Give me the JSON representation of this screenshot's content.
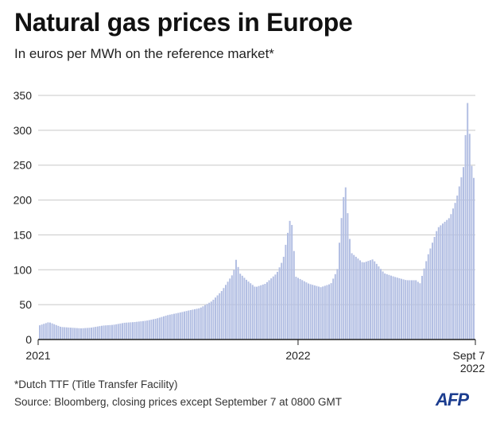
{
  "header": {
    "title": "Natural gas prices in Europe",
    "subtitle": "In euros per MWh on the reference market*"
  },
  "footer": {
    "footnote": "*Dutch TTF (Title Transfer Facility)",
    "source": "Source: Bloomberg, closing prices except September 7 at 0800 GMT",
    "logo": "AFP"
  },
  "colors": {
    "bar": "#b3bfe3",
    "bar_stroke": "#9fadd9",
    "grid": "#c8c8c8",
    "axis": "#222222",
    "text": "#222222"
  },
  "chart_data": {
    "type": "bar",
    "title": "Natural gas prices in Europe",
    "subtitle": "In euros per MWh on the reference market*",
    "ylim": [
      0,
      350
    ],
    "yticks": [
      0,
      50,
      100,
      150,
      200,
      250,
      300,
      350
    ],
    "xlim": [
      "2021-01-01",
      "2022-09-07"
    ],
    "xticks": [
      {
        "date": "2021-01-01",
        "label": "2021"
      },
      {
        "date": "2022-01-01",
        "label": "2022"
      },
      {
        "date": "2022-09-07",
        "label": "Sept 7",
        "label2": "2022"
      }
    ],
    "grid": "horizontal",
    "x": [
      "2021-01-01",
      "2021-01-15",
      "2021-02-01",
      "2021-02-15",
      "2021-03-01",
      "2021-03-15",
      "2021-04-01",
      "2021-04-15",
      "2021-05-01",
      "2021-05-15",
      "2021-06-01",
      "2021-06-15",
      "2021-07-01",
      "2021-07-15",
      "2021-08-01",
      "2021-08-15",
      "2021-09-01",
      "2021-09-15",
      "2021-10-01",
      "2021-10-05",
      "2021-10-10",
      "2021-10-20",
      "2021-11-01",
      "2021-11-15",
      "2021-12-01",
      "2021-12-10",
      "2021-12-21",
      "2021-12-28",
      "2022-01-15",
      "2022-02-01",
      "2022-02-15",
      "2022-02-24",
      "2022-03-01",
      "2022-03-07",
      "2022-03-15",
      "2022-04-01",
      "2022-04-15",
      "2022-05-01",
      "2022-05-15",
      "2022-06-01",
      "2022-06-15",
      "2022-06-20",
      "2022-07-01",
      "2022-07-15",
      "2022-08-01",
      "2022-08-10",
      "2022-08-20",
      "2022-08-26",
      "2022-09-01",
      "2022-09-07"
    ],
    "values": [
      20,
      25,
      18,
      17,
      16,
      17,
      20,
      21,
      24,
      25,
      27,
      30,
      35,
      38,
      42,
      45,
      55,
      70,
      95,
      115,
      95,
      85,
      75,
      80,
      95,
      115,
      180,
      90,
      80,
      75,
      80,
      100,
      165,
      227,
      125,
      110,
      115,
      95,
      90,
      85,
      85,
      80,
      120,
      160,
      175,
      200,
      245,
      340,
      245,
      215
    ]
  }
}
